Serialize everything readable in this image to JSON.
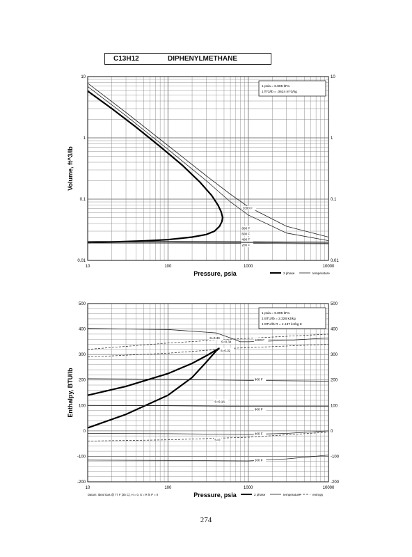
{
  "header": {
    "formula": "C13H12",
    "compound_name": "DIPHENYLMETHANE"
  },
  "page_number": "274",
  "chart_data": [
    {
      "type": "line",
      "xlabel": "Pressure,  psia",
      "ylabel": "Volume, ft^3/lb",
      "xscale": "log",
      "yscale": "log",
      "xlim": [
        10,
        10000
      ],
      "ylim": [
        0.01,
        10
      ],
      "grid": true,
      "x_tick_labels": [
        "10",
        "100",
        "1000",
        "10000"
      ],
      "y_tick_labels": [
        "0.01",
        "0.1",
        "1",
        "10"
      ],
      "conversion_note": [
        "1 psia = 6.895 kPa",
        "1 ft^3/lb = .0624 m^3/kg"
      ],
      "legend": [
        "2 phase",
        "temperature"
      ],
      "legend_placement": "bottom-right",
      "series": [
        {
          "name": "2 phase",
          "x": [
            10,
            20,
            40,
            80,
            150,
            250,
            350,
            420,
            460,
            480,
            470,
            440,
            380,
            300,
            200,
            100,
            50,
            20,
            10
          ],
          "y": [
            5.8,
            3.0,
            1.5,
            0.72,
            0.36,
            0.19,
            0.115,
            0.08,
            0.062,
            0.05,
            0.043,
            0.036,
            0.03,
            0.0265,
            0.024,
            0.0218,
            0.0208,
            0.02,
            0.0195
          ]
        },
        {
          "name": "temperature",
          "x": [
            10,
            30,
            100,
            300,
            600,
            1000,
            3000,
            10000
          ],
          "y": [
            6.9,
            2.3,
            0.65,
            0.2,
            0.09,
            0.055,
            0.028,
            0.021
          ]
        },
        {
          "name": "temperature",
          "x": [
            10,
            30,
            100,
            300,
            600,
            1000,
            3000,
            10000
          ],
          "y": [
            7.8,
            2.6,
            0.75,
            0.24,
            0.12,
            0.075,
            0.036,
            0.024
          ]
        },
        {
          "name": "temperature",
          "x": [
            10,
            100,
            1000,
            10000
          ],
          "y": [
            0.0205,
            0.0205,
            0.0203,
            0.0198
          ]
        },
        {
          "name": "temperature",
          "x": [
            10,
            100,
            1000,
            10000
          ],
          "y": [
            0.0198,
            0.0198,
            0.0196,
            0.0192
          ]
        },
        {
          "name": "temperature",
          "x": [
            10,
            100,
            1000,
            10000
          ],
          "y": [
            0.0192,
            0.0192,
            0.019,
            0.0187
          ]
        }
      ],
      "annotations": [
        {
          "text": "1000 F",
          "x": 850,
          "y": 0.068
        },
        {
          "text": "800 F",
          "x": 830,
          "y": 0.032
        },
        {
          "text": "600 F",
          "x": 830,
          "y": 0.026
        },
        {
          "text": "400 F",
          "x": 830,
          "y": 0.021
        },
        {
          "text": "200 F",
          "x": 830,
          "y": 0.017
        }
      ]
    },
    {
      "type": "line",
      "xlabel": "Pressure,  psia",
      "ylabel": "Enthalpy, BTU/lb",
      "xscale": "log",
      "yscale": "linear",
      "xlim": [
        10,
        10000
      ],
      "ylim": [
        -200,
        500
      ],
      "grid": true,
      "x_tick_labels": [
        "10",
        "100",
        "1000",
        "10000"
      ],
      "y_tick_labels": [
        "-200",
        "-100",
        "0",
        "100",
        "200",
        "300",
        "400",
        "500"
      ],
      "conversion_note": [
        "1 psia = 6.895 kPa",
        "1 BTU/lb = 2.326 kJ/kg",
        "1 BTU/lb R = 4.187 kJ/kg K"
      ],
      "legend": [
        "2 phase",
        "temperature",
        "entropy"
      ],
      "legend_placement": "bottom-right",
      "footnote": "Datum: Ideal Gas @ 77 F (25 C), H = 0, S = R ln P = 0",
      "series": [
        {
          "name": "2 phase",
          "x": [
            10,
            30,
            100,
            200,
            300,
            400,
            440
          ],
          "y": [
            140,
            175,
            225,
            265,
            295,
            318,
            325
          ]
        },
        {
          "name": "2 phase",
          "x": [
            10,
            30,
            100,
            200,
            300,
            400,
            440
          ],
          "y": [
            12,
            65,
            140,
            210,
            270,
            315,
            325
          ]
        },
        {
          "name": "temperature",
          "x": [
            10,
            100,
            400,
            600,
            800,
            1000,
            3000,
            10000
          ],
          "y": [
            402,
            398,
            385,
            365,
            350,
            350,
            355,
            365
          ]
        },
        {
          "name": "temperature",
          "x": [
            10,
            100,
            1000,
            10000
          ],
          "y": [
            205,
            203,
            198,
            195
          ]
        },
        {
          "name": "temperature",
          "x": [
            10,
            100,
            1000,
            10000
          ],
          "y": [
            100,
            99,
            96,
            96
          ]
        },
        {
          "name": "temperature",
          "x": [
            10,
            100,
            1000,
            3000,
            10000
          ],
          "y": [
            -10,
            -11,
            -14,
            -10,
            0
          ]
        },
        {
          "name": "temperature",
          "x": [
            10,
            100,
            1000,
            3000,
            10000
          ],
          "y": [
            -115,
            -116,
            -118,
            -110,
            -95
          ]
        },
        {
          "name": "entropy",
          "x": [
            10,
            100,
            600,
            10000
          ],
          "y": [
            320,
            345,
            360,
            380
          ]
        },
        {
          "name": "entropy",
          "x": [
            10,
            100,
            700,
            10000
          ],
          "y": [
            290,
            305,
            325,
            340
          ]
        },
        {
          "name": "entropy",
          "x": [
            10,
            100,
            1000,
            10000
          ],
          "y": [
            -40,
            -35,
            -25,
            -5
          ]
        }
      ],
      "annotations": [
        {
          "text": "S=0.36",
          "x": 330,
          "y": 360
        },
        {
          "text": "S=0.34",
          "x": 460,
          "y": 345
        },
        {
          "text": "S=0.32",
          "x": 450,
          "y": 312
        },
        {
          "text": "S=0.16",
          "x": 380,
          "y": 110
        },
        {
          "text": "S=0",
          "x": 380,
          "y": -40
        },
        {
          "text": "1000 F",
          "x": 1200,
          "y": 352
        },
        {
          "text": "800 F",
          "x": 1200,
          "y": 198
        },
        {
          "text": "600 F",
          "x": 1200,
          "y": 80
        },
        {
          "text": "400 F",
          "x": 1200,
          "y": -16
        },
        {
          "text": "200 F",
          "x": 1200,
          "y": -120
        }
      ]
    }
  ]
}
